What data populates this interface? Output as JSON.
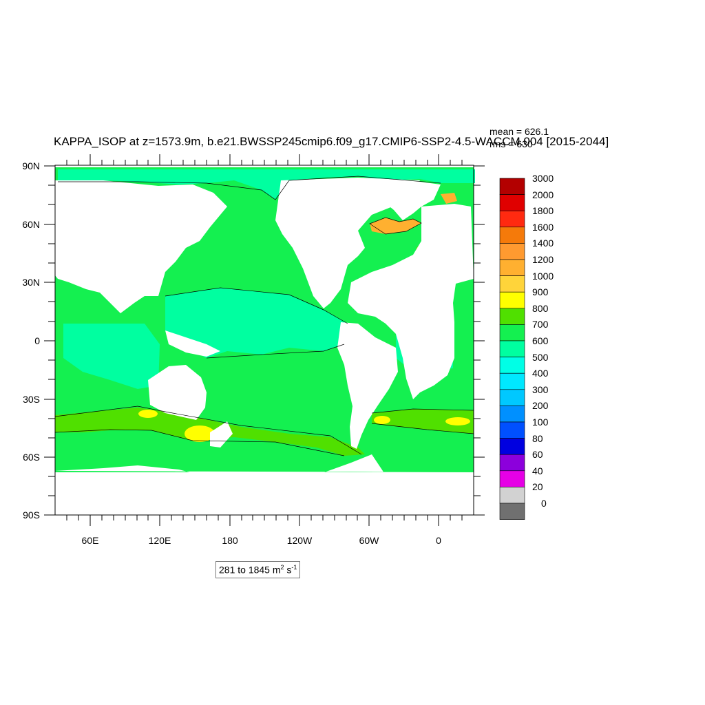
{
  "title": "KAPPA_ISOP at z=1573.9m, b.e21.BWSSP245cmip6.f09_g17.CMIP6-SSP2-4.5-WACCM.004 [2015-2044]",
  "stats": {
    "mean": "mean = 626.1",
    "rms": "rms = 630"
  },
  "y_axis": {
    "ticks": [
      "90N",
      "60N",
      "30N",
      "0",
      "30S",
      "60S",
      "90S"
    ]
  },
  "x_axis": {
    "ticks": [
      "60E",
      "120E",
      "180",
      "120W",
      "60W",
      "0"
    ]
  },
  "range": {
    "min": "281",
    "max": "1845",
    "prefix": "281 to 1845 m",
    "unit_exp1": "2",
    "mid": " s",
    "unit_exp2": "-1"
  },
  "colorbar": {
    "labels": [
      "3000",
      "2000",
      "1800",
      "1600",
      "1400",
      "1200",
      "1000",
      "900",
      "800",
      "700",
      "600",
      "500",
      "400",
      "300",
      "200",
      "100",
      "80",
      "60",
      "40",
      "20",
      "0"
    ],
    "colors": [
      "#b30000",
      "#e00000",
      "#ff2a10",
      "#f57a0a",
      "#ff9a30",
      "#ffb030",
      "#ffd43a",
      "#ffff00",
      "#50e000",
      "#14f050",
      "#00ffa0",
      "#00ffe6",
      "#00e8ff",
      "#00c8ff",
      "#0090ff",
      "#0050ff",
      "#0000e0",
      "#8c00dc",
      "#e600e6",
      "#d2d2d2",
      "#707070"
    ]
  },
  "map_colors": {
    "ocean_base": "#14f050",
    "band_low": "#00ffa0",
    "band_high": "#50e000",
    "land": "#ffffff"
  }
}
